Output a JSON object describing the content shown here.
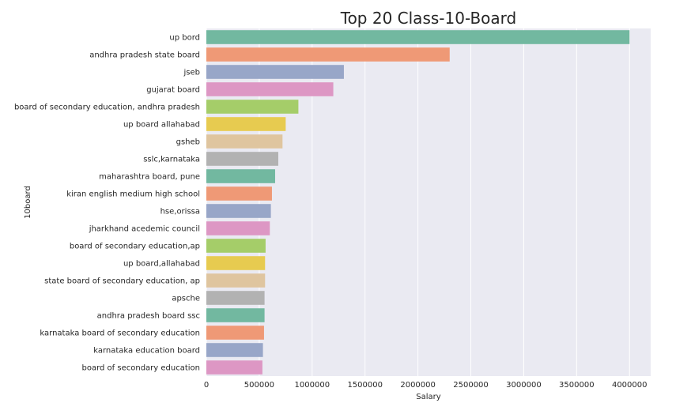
{
  "chart_data": {
    "type": "bar",
    "orientation": "horizontal",
    "title": "Top 20 Class-10-Board",
    "xlabel": "Salary",
    "ylabel": "10board",
    "xlim": [
      0,
      4200000
    ],
    "xticks": [
      0,
      500000,
      1000000,
      1500000,
      2000000,
      2500000,
      3000000,
      3500000,
      4000000
    ],
    "xtick_labels": [
      "0",
      "500000",
      "1000000",
      "1500000",
      "2000000",
      "2500000",
      "3000000",
      "3500000",
      "4000000"
    ],
    "grid": true,
    "categories": [
      "up bord",
      "andhra pradesh state board",
      "jseb",
      "gujarat board",
      "board of secondary education, andhra pradesh",
      "up board allahabad",
      "gsheb",
      "sslc,karnataka",
      "maharashtra board, pune",
      "kiran english medium high school",
      "hse,orissa",
      "jharkhand acedemic council",
      "board of secondary education,ap",
      "up board,allahabad",
      "state board of secondary education, ap",
      "apsche",
      "andhra pradesh board ssc",
      "karnataka board of secondary education",
      "karnataka education board",
      "board of  secondary education"
    ],
    "values": [
      4000000,
      2300000,
      1300000,
      1200000,
      870000,
      750000,
      720000,
      680000,
      650000,
      620000,
      610000,
      600000,
      560000,
      555000,
      555000,
      550000,
      550000,
      545000,
      535000,
      530000
    ],
    "colors": [
      "#72b8a0",
      "#ef9976",
      "#98a6c8",
      "#dd97c4",
      "#a5cd69",
      "#e7cb50",
      "#dfc59f",
      "#b2b2b2"
    ]
  }
}
